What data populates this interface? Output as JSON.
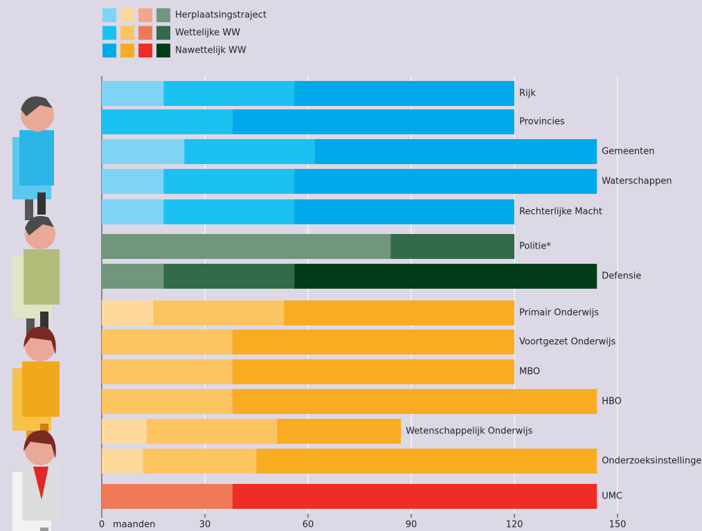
{
  "chart_data": {
    "type": "stacked-bar",
    "categories": [
      "Rijk",
      "Provincies",
      "Gemeenten",
      "Waterschappen",
      "Rechterlijke Macht",
      "Politie*",
      "Defensie",
      "Primair Onderwijs",
      "Voortgezet Onderwijs",
      "MBO",
      "HBO",
      "Wetenschappelijk Onderwijs",
      "Onderzoeksinstellingen",
      "UMC"
    ],
    "series": [
      {
        "name": "Herplaatsingstraject",
        "legend_colors": [
          "#7fd4f6",
          "#fdd99c",
          "#f4a58c",
          "#72967d"
        ],
        "colors": [
          "#7fd4f6",
          "#7fd4f6",
          "#7fd4f6",
          "#7fd4f6",
          "#7fd4f6",
          "#72967d",
          "#72967d",
          "#fdd99c",
          "#fdd99c",
          "#fdd99c",
          "#fdd99c",
          "#fdd99c",
          "#fdd99c",
          "#f4a58c"
        ],
        "values": [
          18,
          0,
          24,
          18,
          18,
          84,
          18,
          15,
          0,
          0,
          0,
          13,
          12,
          0
        ]
      },
      {
        "name": "Wettelijke WW",
        "legend_colors": [
          "#1bc1f1",
          "#fdc462",
          "#f07a56",
          "#326a4a"
        ],
        "colors": [
          "#1bc1f1",
          "#1bc1f1",
          "#1bc1f1",
          "#1bc1f1",
          "#1bc1f1",
          "#326a4a",
          "#326a4a",
          "#fdc462",
          "#fdc462",
          "#fdc462",
          "#fdc462",
          "#fdc462",
          "#fdc462",
          "#f07a56"
        ],
        "values": [
          38,
          38,
          38,
          38,
          38,
          36,
          38,
          38,
          38,
          38,
          38,
          38,
          33,
          38
        ]
      },
      {
        "name": "Nawettelijk WW",
        "legend_colors": [
          "#00aaea",
          "#f9ab22",
          "#ee2d26",
          "#003d18"
        ],
        "colors": [
          "#00aaea",
          "#00aaea",
          "#00aaea",
          "#00aaea",
          "#00aaea",
          "#003d18",
          "#003d18",
          "#f9ab22",
          "#f9ab22",
          "#f9ab22",
          "#f9ab22",
          "#f9ab22",
          "#f9ab22",
          "#ee2d26"
        ],
        "values": [
          64,
          82,
          82,
          88,
          64,
          0,
          88,
          67,
          82,
          82,
          106,
          36,
          99,
          106
        ]
      }
    ],
    "x_label": "maanden",
    "xlim": [
      0,
      150
    ],
    "xticks": [
      0,
      30,
      60,
      90,
      120,
      150
    ],
    "grid": true
  }
}
